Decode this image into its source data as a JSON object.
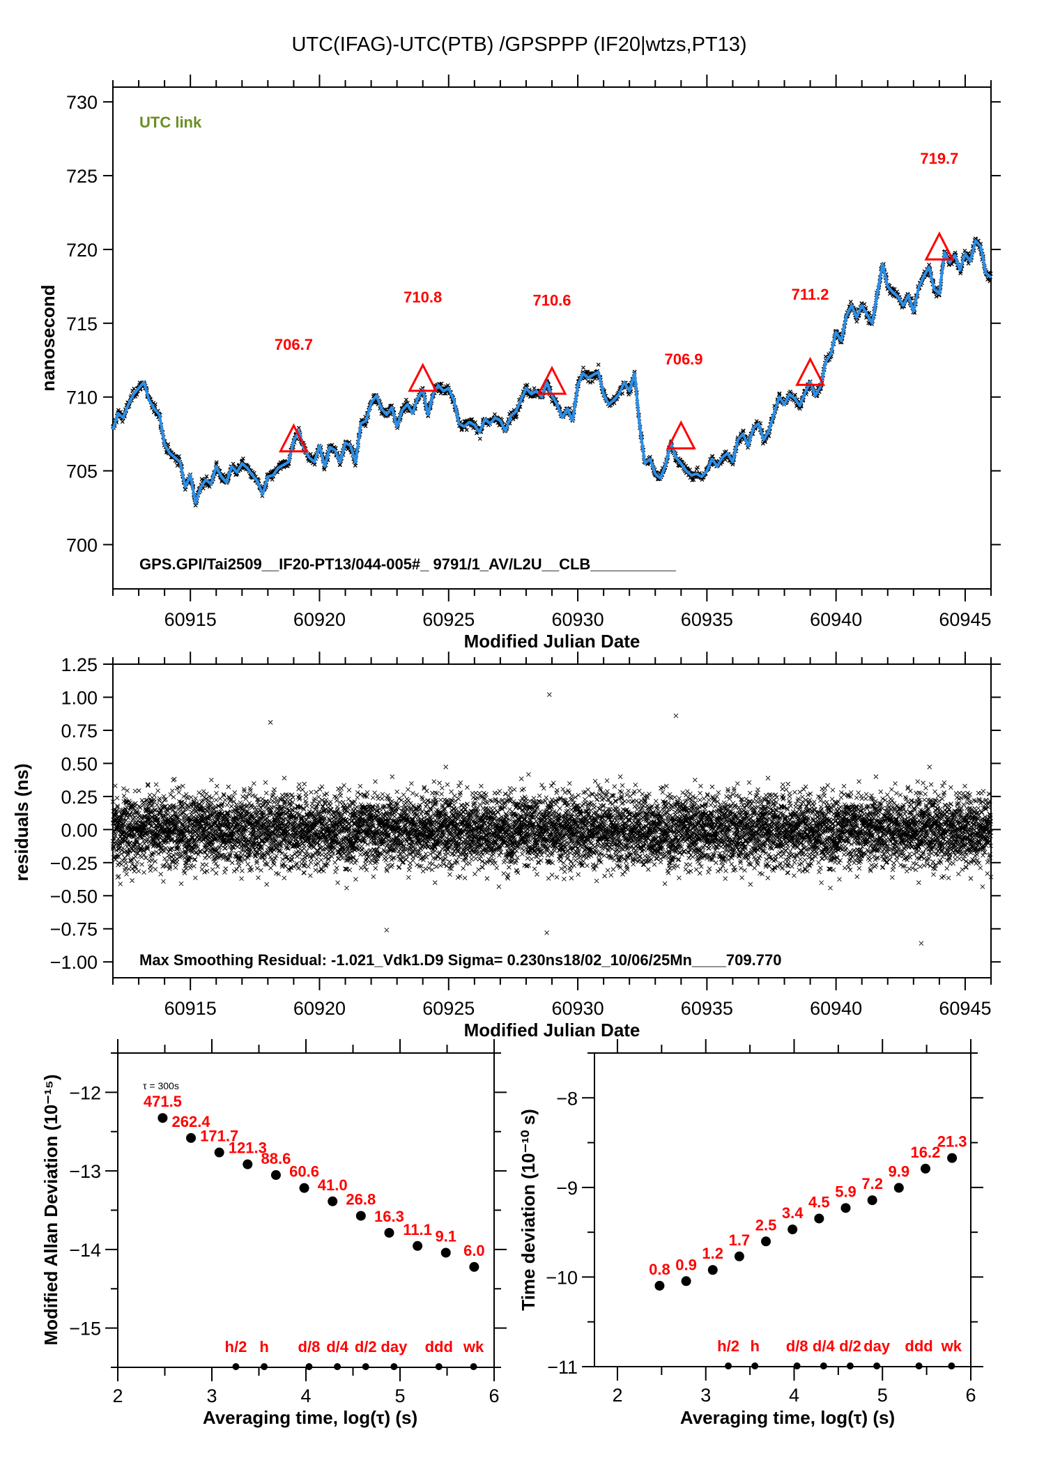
{
  "page_title": "UTC(IFAG)-UTC(PTB)  /GPSPPP  (IF20|wtzs,PT13)",
  "chart_data": [
    {
      "id": "time-series",
      "type": "line",
      "title": "UTC(IFAG)-UTC(PTB)  /GPSPPP  (IF20|wtzs,PT13)",
      "xlabel": "Modified Julian Date",
      "ylabel": "nanosecond",
      "xlim": [
        60912,
        60946
      ],
      "ylim": [
        697,
        731
      ],
      "x_ticks": [
        60915,
        60920,
        60925,
        60930,
        60935,
        60940,
        60945
      ],
      "x_tick_labels": [
        "60915",
        "60920",
        "60925",
        "60930",
        "60935",
        "60940",
        "60945"
      ],
      "y_ticks": [
        700,
        705,
        710,
        715,
        720,
        725,
        730
      ],
      "y_tick_labels": [
        "700",
        "705",
        "710",
        "715",
        "720",
        "725",
        "730"
      ],
      "legend_label": "UTC link",
      "footer_text": "GPS.GPI/Tai2509__IF20-PT13/044-005#_  9791/1_AV/L2U__CLB__________",
      "colors": {
        "smoothed": "#2b8fe8",
        "raw": "#000000",
        "markers": "#ff0000",
        "legend": "#6b8e23"
      },
      "smoothed_series": {
        "name": "smoothed",
        "x": [
          60912.0,
          60912.2,
          60912.4,
          60912.6,
          60912.8,
          60913.0,
          60913.2,
          60913.4,
          60913.6,
          60913.8,
          60914.0,
          60914.2,
          60914.4,
          60914.6,
          60914.8,
          60915.0,
          60915.2,
          60915.4,
          60915.6,
          60915.8,
          60916.0,
          60916.2,
          60916.4,
          60916.6,
          60916.8,
          60917.0,
          60917.2,
          60917.4,
          60917.6,
          60917.8,
          60918.0,
          60918.2,
          60918.4,
          60918.6,
          60918.8,
          60919.0,
          60919.2,
          60919.4,
          60919.6,
          60919.8,
          60920.0,
          60920.2,
          60920.4,
          60920.6,
          60920.8,
          60921.0,
          60921.2,
          60921.4,
          60921.6,
          60921.8,
          60922.0,
          60922.2,
          60922.4,
          60922.6,
          60922.8,
          60923.0,
          60923.2,
          60923.4,
          60923.6,
          60923.8,
          60924.0,
          60924.2,
          60924.4,
          60924.6,
          60924.8,
          60925.0,
          60925.2,
          60925.4,
          60925.6,
          60925.8,
          60926.0,
          60926.2,
          60926.4,
          60926.6,
          60926.8,
          60927.0,
          60927.2,
          60927.4,
          60927.6,
          60927.8,
          60928.0,
          60928.2,
          60928.4,
          60928.6,
          60928.8,
          60929.0,
          60929.2,
          60929.4,
          60929.6,
          60929.8,
          60930.0,
          60930.2,
          60930.4,
          60930.6,
          60930.8,
          60931.0,
          60931.2,
          60931.4,
          60931.6,
          60931.8,
          60932.0,
          60932.2,
          60932.4,
          60932.6,
          60932.8,
          60933.0,
          60933.2,
          60933.4,
          60933.6,
          60933.8,
          60934.0,
          60934.2,
          60934.4,
          60934.6,
          60934.8,
          60935.0,
          60935.2,
          60935.4,
          60935.6,
          60935.8,
          60936.0,
          60936.2,
          60936.4,
          60936.6,
          60936.8,
          60937.0,
          60937.2,
          60937.4,
          60937.6,
          60937.8,
          60938.0,
          60938.2,
          60938.4,
          60938.6,
          60938.8,
          60939.0,
          60939.2,
          60939.4,
          60939.6,
          60939.8,
          60940.0,
          60940.2,
          60940.4,
          60940.6,
          60940.8,
          60941.0,
          60941.2,
          60941.4,
          60941.6,
          60941.8,
          60942.0,
          60942.2,
          60942.4,
          60942.6,
          60942.8,
          60943.0,
          60943.2,
          60943.4,
          60943.6,
          60943.8,
          60944.0,
          60944.2,
          60944.4,
          60944.6,
          60944.8,
          60945.0,
          60945.2,
          60945.4,
          60945.6,
          60945.8,
          60946.0
        ],
        "y": [
          707.8,
          708.9,
          708.6,
          709.5,
          710.2,
          710.6,
          711.0,
          709.8,
          709.2,
          708.8,
          706.8,
          706.2,
          705.9,
          705.6,
          703.9,
          704.7,
          702.8,
          703.9,
          704.4,
          704.1,
          705.3,
          704.6,
          704.2,
          705.3,
          704.9,
          705.5,
          705.2,
          704.7,
          704.3,
          703.4,
          704.6,
          704.7,
          705.2,
          705.4,
          705.6,
          707.0,
          707.7,
          706.5,
          705.9,
          705.6,
          706.7,
          705.3,
          706.6,
          706.4,
          705.6,
          706.9,
          706.7,
          705.6,
          708.2,
          708.4,
          709.6,
          710.1,
          709.2,
          708.8,
          709.3,
          708.0,
          709.1,
          709.5,
          708.9,
          709.9,
          710.5,
          708.8,
          710.2,
          710.8,
          710.4,
          710.6,
          709.8,
          708.2,
          708.0,
          708.3,
          708.1,
          707.6,
          708.5,
          708.2,
          708.6,
          708.4,
          707.7,
          708.7,
          709.0,
          709.8,
          710.6,
          710.2,
          710.4,
          710.0,
          711.0,
          710.1,
          709.5,
          708.6,
          709.2,
          708.4,
          710.8,
          711.6,
          711.3,
          711.5,
          711.7,
          710.2,
          709.5,
          709.8,
          710.2,
          711.0,
          710.4,
          711.6,
          708.0,
          705.5,
          705.8,
          704.8,
          704.5,
          705.4,
          706.9,
          705.9,
          705.5,
          705.0,
          704.7,
          704.8,
          704.6,
          705.0,
          705.8,
          705.3,
          705.9,
          706.2,
          705.6,
          707.1,
          707.5,
          706.7,
          707.9,
          708.2,
          707.1,
          707.7,
          708.9,
          710.0,
          709.5,
          710.2,
          709.9,
          709.4,
          710.3,
          711.0,
          710.1,
          710.7,
          712.4,
          712.9,
          714.4,
          713.8,
          715.5,
          716.2,
          715.4,
          716.2,
          715.6,
          715.0,
          717.0,
          719.0,
          717.5,
          717.1,
          716.8,
          716.2,
          716.9,
          715.8,
          717.4,
          718.2,
          718.8,
          717.3,
          717.0,
          719.8,
          719.1,
          719.6,
          718.6,
          719.7,
          719.2,
          720.6,
          720.2,
          718.4,
          718.1
        ],
        "note": "approximate smoothed trace read from plot"
      },
      "markers": [
        {
          "mjd": 60919,
          "value": 706.7,
          "label": "706.7"
        },
        {
          "mjd": 60924,
          "value": 710.8,
          "label": "710.8"
        },
        {
          "mjd": 60929,
          "value": 710.6,
          "label": "710.6"
        },
        {
          "mjd": 60934,
          "value": 706.9,
          "label": "706.9"
        },
        {
          "mjd": 60939,
          "value": 711.2,
          "label": "711.2"
        },
        {
          "mjd": 60944,
          "value": 719.7,
          "label": "719.7"
        }
      ]
    },
    {
      "id": "residuals",
      "type": "scatter",
      "xlabel": "Modified Julian Date",
      "ylabel": "residuals (ns)",
      "xlim": [
        60912,
        60946
      ],
      "ylim": [
        -1.12,
        1.25
      ],
      "x_ticks": [
        60915,
        60920,
        60925,
        60930,
        60935,
        60940,
        60945
      ],
      "x_tick_labels": [
        "60915",
        "60920",
        "60925",
        "60930",
        "60935",
        "60940",
        "60945"
      ],
      "y_ticks": [
        -1.0,
        -0.75,
        -0.5,
        -0.25,
        0.0,
        0.25,
        0.5,
        0.75,
        1.0,
        1.25
      ],
      "y_tick_labels": [
        "−1.00",
        "−0.75",
        "−0.50",
        "−0.25",
        "0.00",
        "0.25",
        "0.50",
        "0.75",
        "1.00",
        "1.25"
      ],
      "sigma_ns": 0.23,
      "max_residual_ns": -1.021,
      "notable_points": [
        {
          "mjd": 60918.1,
          "value": 0.81
        },
        {
          "mjd": 60928.9,
          "value": 1.02
        },
        {
          "mjd": 60933.8,
          "value": 0.86
        },
        {
          "mjd": 60928.8,
          "value": -0.78
        },
        {
          "mjd": 60943.3,
          "value": -0.86
        },
        {
          "mjd": 60922.6,
          "value": -0.76
        }
      ],
      "footer_text": "Max Smoothing Residual: -1.021_Vdk1.D9  Sigma= 0.230ns18/02_10/06/25Mn____709.770"
    },
    {
      "id": "mdev",
      "type": "scatter",
      "xlabel": "Averaging time, log(τ) (s)",
      "ylabel": "Modified Allan Deviation (10⁻¹⁵)",
      "xlim": [
        2,
        6
      ],
      "ylim": [
        -15.5,
        -11.5
      ],
      "x_ticks": [
        2,
        3,
        4,
        5,
        6
      ],
      "x_tick_labels": [
        "2",
        "3",
        "4",
        "5",
        "6"
      ],
      "y_ticks": [
        -15,
        -14,
        -13,
        -12
      ],
      "y_tick_labels": [
        "−15",
        "−14",
        "−13",
        "−12"
      ],
      "annotation": "τ = 300s",
      "x": [
        2.477,
        2.778,
        3.079,
        3.38,
        3.681,
        3.982,
        4.283,
        4.584,
        4.885,
        5.186,
        5.487,
        5.788
      ],
      "values_1e-15": [
        471.5,
        262.4,
        171.7,
        121.3,
        88.6,
        60.6,
        41.0,
        26.8,
        16.3,
        11.1,
        9.1,
        6.0
      ],
      "labels": [
        "471.5",
        "262.4",
        "171.7",
        "121.3",
        "88.6",
        "60.6",
        "41.0",
        "26.8",
        "16.3",
        "11.1",
        "9.1",
        "6.0"
      ]
    },
    {
      "id": "tdev",
      "type": "scatter",
      "xlabel": "Averaging time, log(τ) (s)",
      "ylabel": "Time deviation (10⁻¹⁰ s)",
      "xlim": [
        1.74,
        6
      ],
      "ylim": [
        -11,
        -7.5
      ],
      "x_ticks": [
        2,
        3,
        4,
        5,
        6
      ],
      "x_tick_labels": [
        "2",
        "3",
        "4",
        "5",
        "6"
      ],
      "y_ticks": [
        -11,
        -10,
        -9,
        -8
      ],
      "y_tick_labels": [
        "−11",
        "−10",
        "−9",
        "−8"
      ],
      "x": [
        2.477,
        2.778,
        3.079,
        3.38,
        3.681,
        3.982,
        4.283,
        4.584,
        4.885,
        5.186,
        5.487,
        5.788
      ],
      "values_1e-10": [
        0.8,
        0.9,
        1.2,
        1.7,
        2.5,
        3.4,
        4.5,
        5.9,
        7.2,
        9.9,
        16.2,
        21.3
      ],
      "labels": [
        "0.8",
        "0.9",
        "1.2",
        "1.7",
        "2.5",
        "3.4",
        "4.5",
        "5.9",
        "7.2",
        "9.9",
        "16.2",
        "21.3"
      ]
    }
  ],
  "time_markers": {
    "labels": [
      "h/2",
      "h",
      "d/8",
      "d/4",
      "d/2",
      "day",
      "ddd",
      "wk"
    ],
    "log_tau": [
      3.255,
      3.556,
      4.033,
      4.334,
      4.635,
      4.936,
      5.413,
      5.782
    ]
  }
}
